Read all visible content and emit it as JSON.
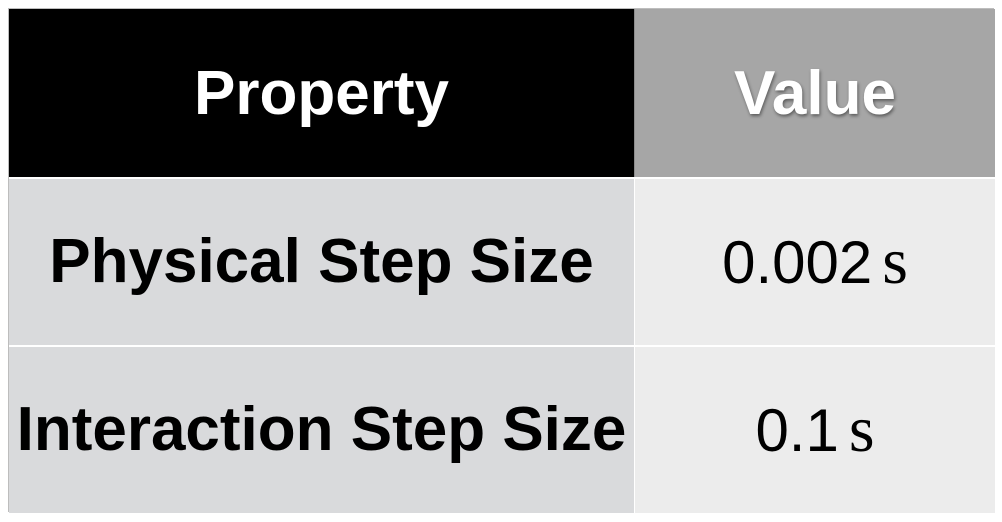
{
  "table": {
    "headers": {
      "property": "Property",
      "value": "Value"
    },
    "rows": [
      {
        "property": "Physical Step Size",
        "value": "0.002",
        "unit": "s"
      },
      {
        "property": "Interaction Step Size",
        "value": "0.1",
        "unit": "s"
      }
    ]
  },
  "colors": {
    "header_property_bg": "#000000",
    "header_value_bg": "#a6a6a6",
    "property_cell_bg": "#d9dadc",
    "value_cell_bg": "#ececec"
  }
}
